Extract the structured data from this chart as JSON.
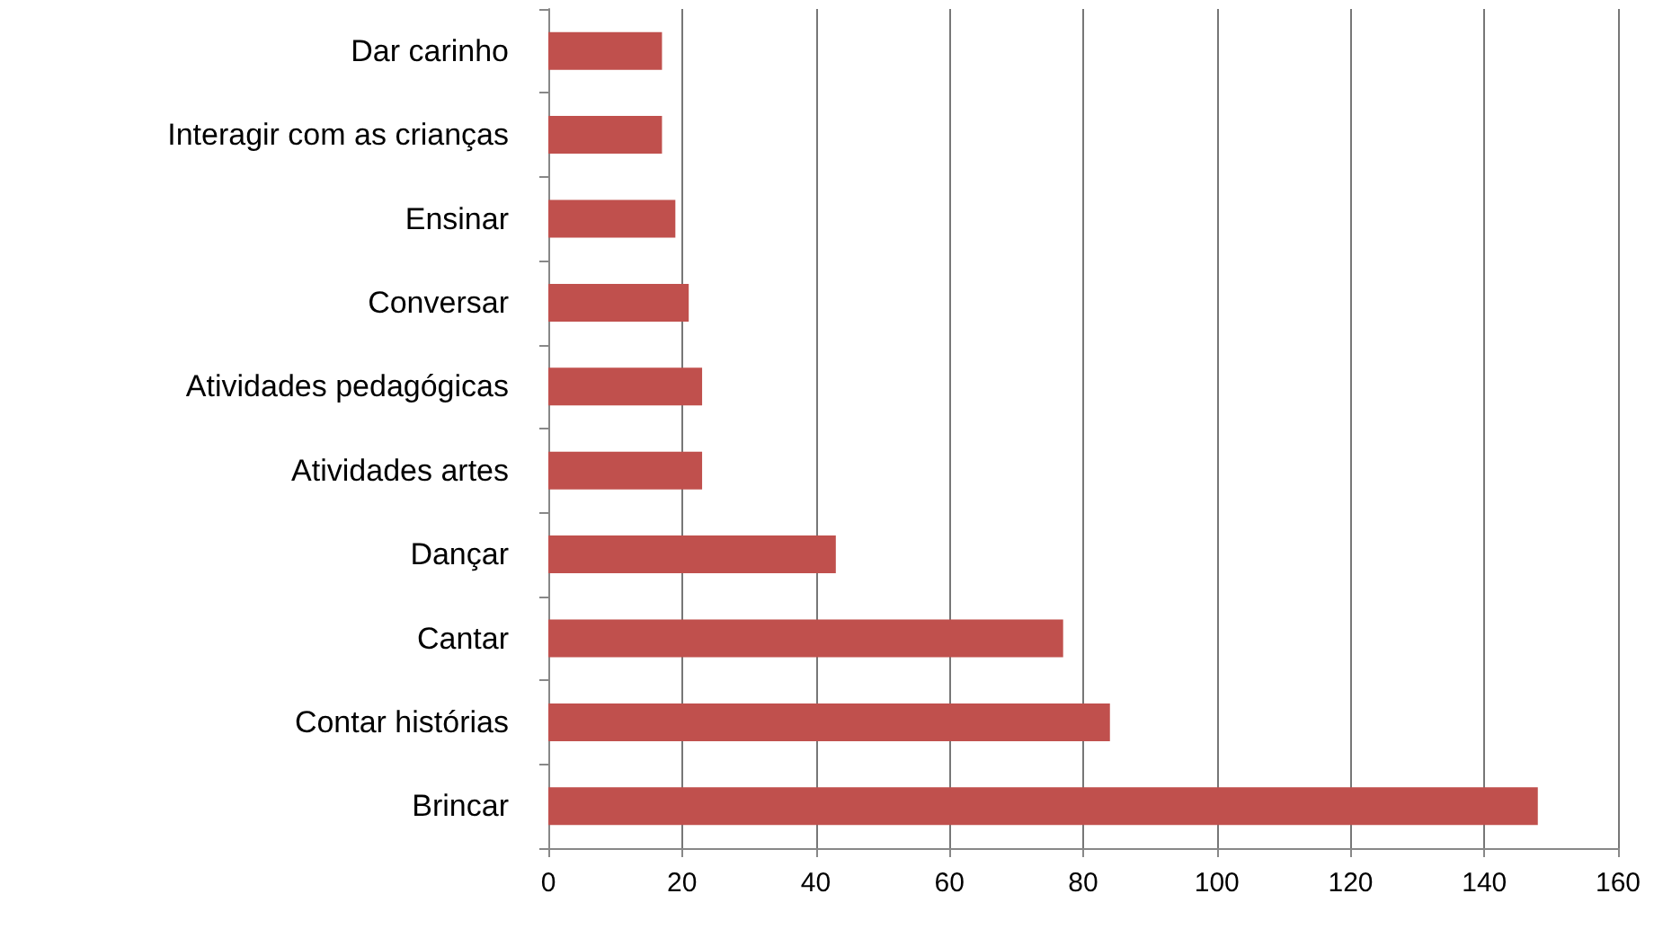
{
  "chart_data": {
    "type": "bar",
    "orientation": "horizontal",
    "categories": [
      "Dar carinho",
      "Interagir com as crianças",
      "Ensinar",
      "Conversar",
      "Atividades pedagógicas",
      "Atividades artes",
      "Dançar",
      "Cantar",
      "Contar histórias",
      "Brincar"
    ],
    "values": [
      17,
      17,
      19,
      21,
      23,
      23,
      43,
      77,
      84,
      148
    ],
    "color": "#c0504d",
    "xlim": [
      0,
      160
    ],
    "xticks": [
      0,
      20,
      40,
      60,
      80,
      100,
      120,
      140,
      160
    ],
    "grid": "x"
  }
}
